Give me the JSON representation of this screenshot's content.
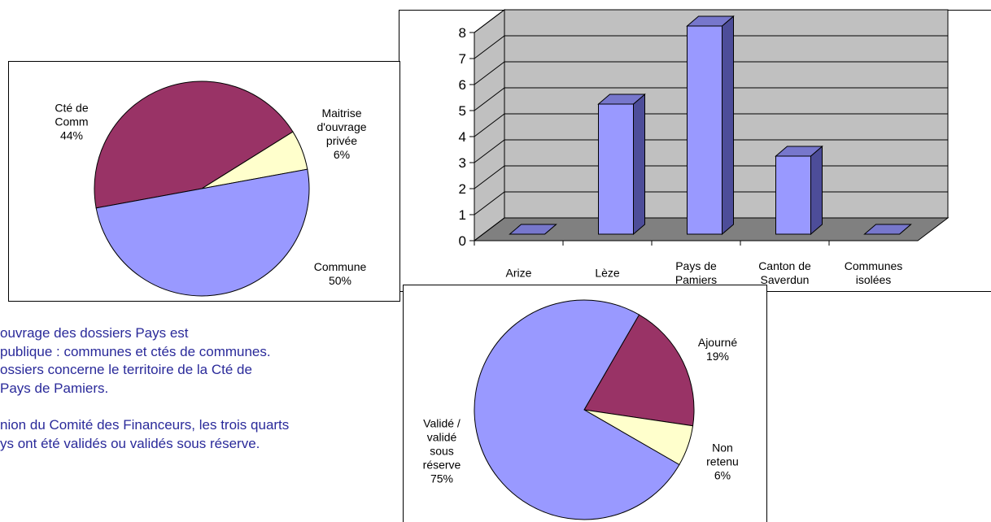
{
  "chart_data": [
    {
      "type": "pie",
      "categories": [
        "Cté de Comm",
        "Maitrise d'ouvrage privée",
        "Commune"
      ],
      "values": [
        44,
        6,
        50
      ],
      "value_labels": [
        "44%",
        "6%",
        "50%"
      ],
      "colors": [
        "#993366",
        "#ffffcc",
        "#9999ff"
      ]
    },
    {
      "type": "bar3d",
      "categories": [
        "Arize",
        "Lèze",
        "Pays de Pamiers",
        "Canton de Saverdun",
        "Communes isolées"
      ],
      "values": [
        0,
        5,
        8,
        3,
        0
      ],
      "color": "#9999ff",
      "ylim": [
        0,
        8
      ],
      "yticks": [
        0,
        1,
        2,
        3,
        4,
        5,
        6,
        7,
        8
      ],
      "grid": true
    },
    {
      "type": "pie",
      "categories": [
        "Ajourné",
        "Non retenu",
        "Validé / validé sous réserve"
      ],
      "values": [
        19,
        6,
        75
      ],
      "value_labels": [
        "19%",
        "6%",
        "75%"
      ],
      "colors": [
        "#993366",
        "#ffffcc",
        "#9999ff"
      ]
    }
  ],
  "paragraphs": [
    [
      "ouvrage des dossiers Pays est",
      "publique : communes et ctés de communes.",
      "ossiers concerne le territoire de la Cté de",
      "Pays de Pamiers."
    ],
    [
      "nion du Comité des Financeurs, les trois quarts",
      "ys ont été validés ou validés sous réserve."
    ]
  ]
}
